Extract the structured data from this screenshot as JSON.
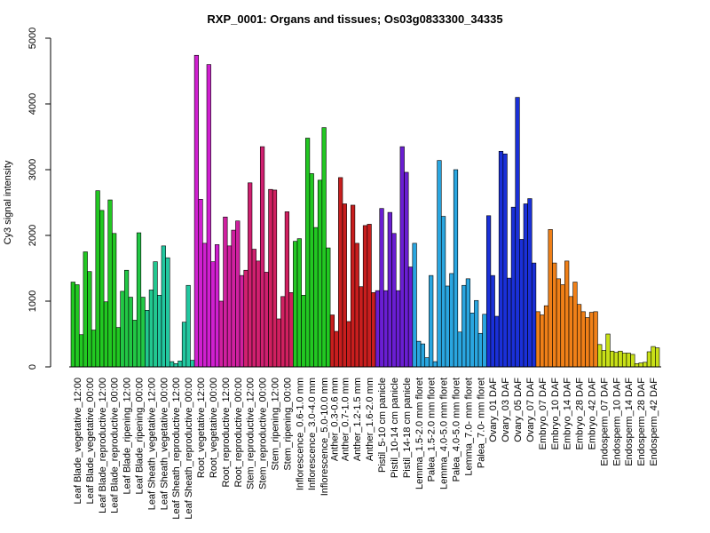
{
  "chart_data": {
    "type": "bar",
    "title": "RXP_0001: Organs and tissues; Os03g0833300_34335",
    "xlabel": "",
    "ylabel": "Cy3 signal intensity",
    "ylim": [
      0,
      5000
    ],
    "yticks": [
      0,
      1000,
      2000,
      3000,
      4000,
      5000
    ],
    "grid": false,
    "legend": "none",
    "labels": [
      "Leaf Blade_vegetative_12:00",
      "Leaf Blade_vegetative_00:00",
      "Leaf Blade_reproductive_12:00",
      "Leaf Blade_reproductive_00:00",
      "Leaf Blade_ripening_12:00",
      "Leaf Blade_ripening_00:00",
      "Leaf Sheath_vegetative_12:00",
      "Leaf Sheath_vegetative_00:00",
      "Leaf Sheath_reproductive_12:00",
      "Leaf Sheath_reproductive_00:00",
      "Root_vegetative_12:00",
      "Root_vegetative_00:00",
      "Root_reproductive_12:00",
      "Root_reproductive_00:00",
      "Stem_reproductive_12:00",
      "Stem_reproductive_00:00",
      "Stem_ripening_12:00",
      "Stem_ripening_00:00",
      "Inflorescence_0.6-1.0 mm",
      "Inflorescence_3.0-4.0 mm",
      "Inflorescence_5.0-10.0 mm",
      "Anther_0.3-0.6 mm",
      "Anther_0.7-1.0 mm",
      "Anther_1.2-1.5 mm",
      "Anther_1.6-2.0 mm",
      "Pistil_5-10 cm panicle",
      "Pistil_10-14 cm panicle",
      "Pistil_14-18 cm panicle",
      "Lemma_1.5-2.0 mm floret",
      "Palea_1.5-2.0 mm floret",
      "Lemma_4.0-5.0 mm floret",
      "Palea_4.0-5.0 mm floret",
      "Lemma_7.0- mm floret",
      "Palea_7.0- mm floret",
      "Ovary_01 DAF",
      "Ovary_03 DAF",
      "Ovary_05 DAF",
      "Ovary_07 DAF",
      "Embryo_07 DAF",
      "Embryo_10 DAF",
      "Embryo_14 DAF",
      "Embryo_28 DAF",
      "Embryo_42 DAF",
      "Endosperm_07 DAF",
      "Endosperm_10 DAF",
      "Endosperm_14 DAF",
      "Endosperm_28 DAF",
      "Endosperm_42 DAF"
    ],
    "groups": [
      {
        "color": "#22c822",
        "values": [
          1290,
          1250,
          490
        ]
      },
      {
        "color": "#22c822",
        "values": [
          1750,
          1450,
          560
        ]
      },
      {
        "color": "#22c822",
        "values": [
          2680,
          2380,
          990
        ]
      },
      {
        "color": "#22c822",
        "values": [
          2540,
          2030,
          600
        ]
      },
      {
        "color": "#22c845",
        "values": [
          1150,
          1470,
          1060
        ]
      },
      {
        "color": "#22c845",
        "values": [
          710,
          2040,
          1060
        ]
      },
      {
        "color": "#22c890",
        "values": [
          860,
          1170,
          1600
        ]
      },
      {
        "color": "#22c8a0",
        "values": [
          1090,
          1840,
          1660
        ]
      },
      {
        "color": "#22c8a0",
        "values": [
          80,
          50,
          90
        ]
      },
      {
        "color": "#22c8a0",
        "values": [
          680,
          1240,
          100
        ]
      },
      {
        "color": "#d020d0",
        "values": [
          4740,
          2550,
          1880
        ]
      },
      {
        "color": "#d020d0",
        "values": [
          4600,
          1600,
          1860
        ]
      },
      {
        "color": "#d020a0",
        "values": [
          1000,
          2280,
          1840
        ]
      },
      {
        "color": "#d020a0",
        "values": [
          2080,
          2220,
          1390
        ]
      },
      {
        "color": "#d02070",
        "values": [
          1470,
          2800,
          1790
        ]
      },
      {
        "color": "#d02070",
        "values": [
          1610,
          3350,
          1440
        ]
      },
      {
        "color": "#d02060",
        "values": [
          2700,
          2690,
          730
        ]
      },
      {
        "color": "#d02060",
        "values": [
          1070,
          2360,
          1130
        ]
      },
      {
        "color": "#22c822",
        "values": [
          1910,
          1950,
          1090
        ]
      },
      {
        "color": "#22c822",
        "values": [
          3480,
          2940,
          2120
        ]
      },
      {
        "color": "#22c822",
        "values": [
          2840,
          3640,
          1810
        ]
      },
      {
        "color": "#c81e1e",
        "values": [
          790,
          540
        ]
      },
      {
        "color": "#c81e1e",
        "values": [
          2880,
          2480,
          690
        ]
      },
      {
        "color": "#c81e1e",
        "values": [
          2460,
          1880,
          1220
        ]
      },
      {
        "color": "#c81e1e",
        "values": [
          2150,
          2170,
          1130
        ]
      },
      {
        "color": "#6a1ed2",
        "values": [
          1160,
          2410,
          1160
        ]
      },
      {
        "color": "#6a1ed2",
        "values": [
          2350,
          2030,
          1160
        ]
      },
      {
        "color": "#6a1ed2",
        "values": [
          3350,
          2960,
          1520
        ]
      },
      {
        "color": "#2aa6e0",
        "values": [
          1880,
          390,
          350
        ]
      },
      {
        "color": "#2aa6e0",
        "values": [
          140,
          1390,
          80
        ]
      },
      {
        "color": "#2aa6e0",
        "values": [
          3140,
          2290,
          1230
        ]
      },
      {
        "color": "#2aa6e0",
        "values": [
          1420,
          3000,
          530
        ]
      },
      {
        "color": "#2aa6e0",
        "values": [
          1240,
          1340,
          820
        ]
      },
      {
        "color": "#2aa6e0",
        "values": [
          1010,
          510,
          800
        ]
      },
      {
        "color": "#1a30d8",
        "values": [
          2300,
          1390,
          770
        ]
      },
      {
        "color": "#1a30d8",
        "values": [
          3280,
          3240,
          1350
        ]
      },
      {
        "color": "#1a30d8",
        "values": [
          2430,
          4100,
          1940
        ]
      },
      {
        "color": "#1a30d8",
        "values": [
          2480,
          2560,
          1580
        ]
      },
      {
        "color": "#f08018",
        "values": [
          840,
          790,
          930
        ]
      },
      {
        "color": "#f08018",
        "values": [
          2090,
          1580,
          1340
        ]
      },
      {
        "color": "#f08018",
        "values": [
          1250,
          1610,
          1070
        ]
      },
      {
        "color": "#f08018",
        "values": [
          1290,
          950,
          840
        ]
      },
      {
        "color": "#f08018",
        "values": [
          750,
          830,
          840
        ]
      },
      {
        "color": "#c8e018",
        "values": [
          340,
          250,
          500
        ]
      },
      {
        "color": "#c8e018",
        "values": [
          240,
          220,
          240
        ]
      },
      {
        "color": "#c8e018",
        "values": [
          210,
          210,
          190
        ]
      },
      {
        "color": "#c8e018",
        "values": [
          50,
          60,
          70
        ]
      },
      {
        "color": "#c8e018",
        "values": [
          230,
          310,
          290
        ]
      }
    ]
  }
}
